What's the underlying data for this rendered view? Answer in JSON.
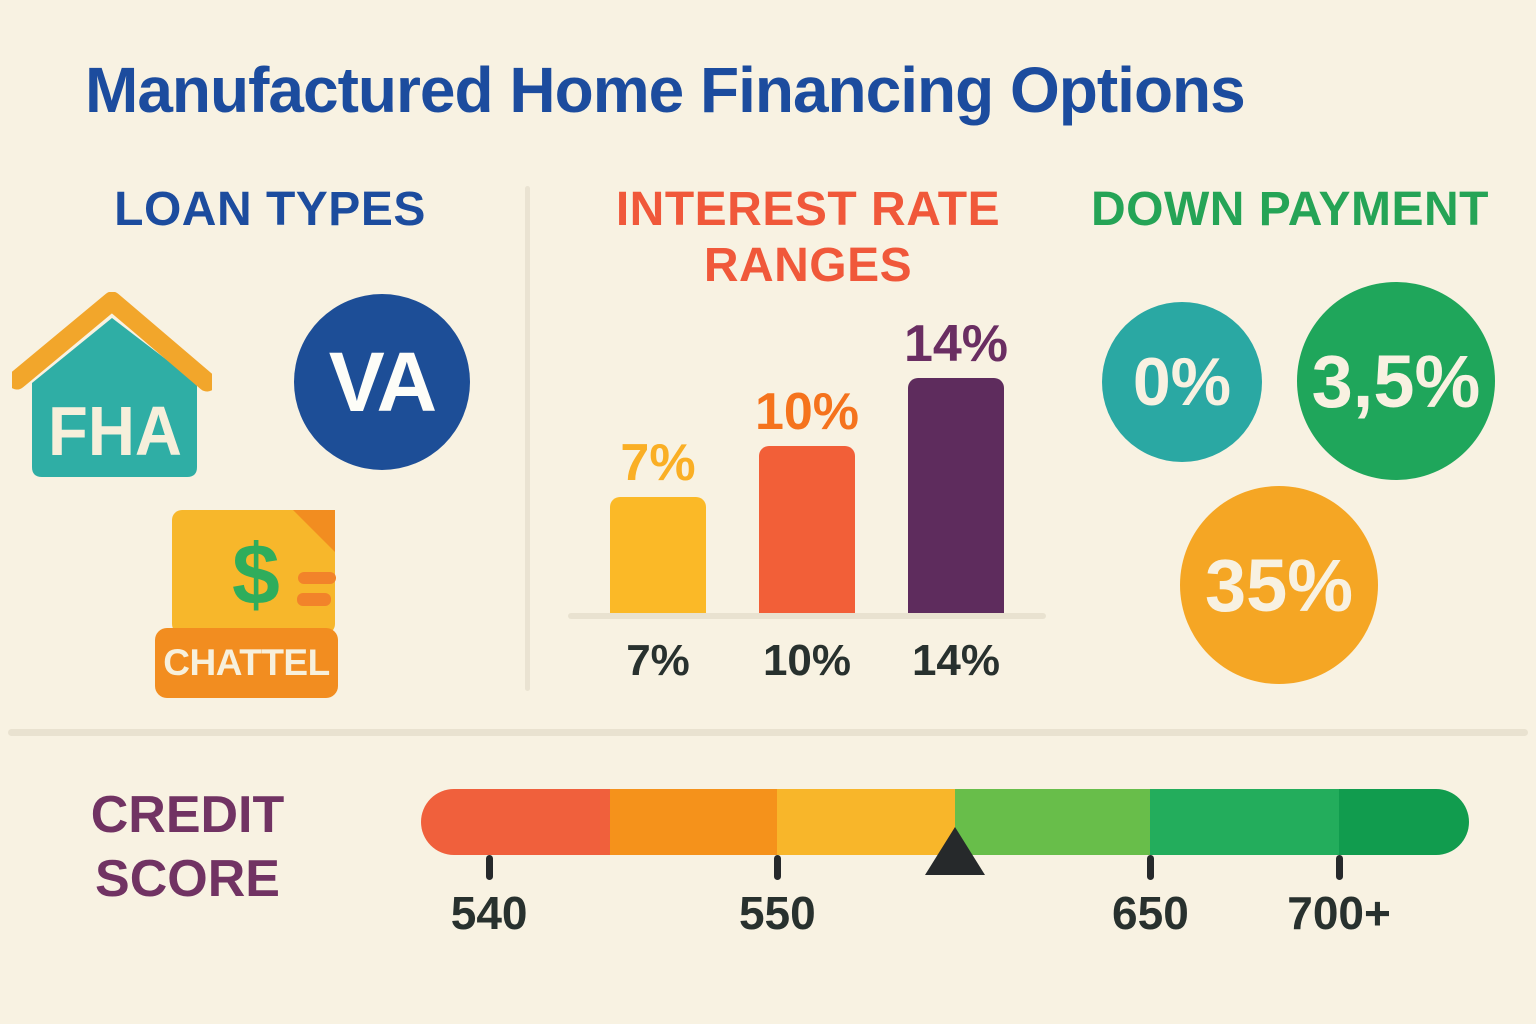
{
  "background_color": "#F8F2E2",
  "title": {
    "text": "Manufactured Home Financing Options",
    "color": "#1C4C9E"
  },
  "loan_types": {
    "heading": "LOAN TYPES",
    "heading_color": "#1C4C9E",
    "fha": {
      "label": "FHA",
      "house_color": "#2FAEA5",
      "roof_color": "#F2A62B",
      "label_color": "#F6EFDB"
    },
    "va": {
      "label": "VA",
      "circle_color": "#1D4E97",
      "label_color": "#FDFDF8"
    },
    "chattel": {
      "label": "CHATTEL",
      "dollar": "$",
      "doc_color": "#F7B72B",
      "accent_color": "#F28D20",
      "dollar_color": "#2FAD5C",
      "label_color": "#F7F0DC"
    }
  },
  "interest_rates": {
    "heading_line1": "INTEREST RATE",
    "heading_line2": "RANGES",
    "heading_color": "#F0583A",
    "bars": [
      {
        "value_label": "7%",
        "axis_label": "7%",
        "label_color": "#FAAF25"
      },
      {
        "value_label": "10%",
        "axis_label": "10%",
        "label_color": "#F5731D"
      },
      {
        "value_label": "14%",
        "axis_label": "14%",
        "label_color": "#6A2E62"
      }
    ],
    "axis_label_color": "#28312E"
  },
  "down_payment": {
    "heading": "DOWN PAYMENT",
    "heading_color": "#25A456",
    "text_color": "#F8F1E1",
    "circles": [
      {
        "value": "0%",
        "color": "#2AA8A3"
      },
      {
        "value": "3,5%",
        "color": "#1FA65B"
      },
      {
        "value": "35%",
        "color": "#F5A624"
      }
    ]
  },
  "credit_score": {
    "heading_line1": "CREDIT",
    "heading_line2": "SCORE",
    "heading_color": "#713363",
    "tick_labels": [
      "540",
      "550",
      "650",
      "700+"
    ],
    "label_color": "#28312E"
  },
  "chart_data": [
    {
      "type": "bar",
      "title": "INTEREST RATE RANGES",
      "categories": [
        "7%",
        "10%",
        "14%"
      ],
      "values": [
        7,
        10,
        14
      ],
      "data_labels": [
        "7%",
        "10%",
        "14%"
      ],
      "bar_colors": [
        "#FBB927",
        "#F25F38",
        "#5E2C5D"
      ],
      "xlabel": "",
      "ylabel": "",
      "ylim": [
        0,
        14
      ],
      "grid": false,
      "legend": false
    },
    {
      "type": "bar",
      "subtype": "horizontal-segmented-credit-scale",
      "title": "CREDIT SCORE",
      "tick_labels": [
        "540",
        "550",
        "650",
        "700+"
      ],
      "tick_positions_pct": [
        6.5,
        34.0,
        69.6,
        87.6
      ],
      "segments": [
        {
          "color": "#F0603C",
          "width_pct": 18.0
        },
        {
          "color": "#F5921B",
          "width_pct": 16.0
        },
        {
          "color": "#F8B62A",
          "width_pct": 17.0
        },
        {
          "color": "#68BE4A",
          "width_pct": 18.6
        },
        {
          "color": "#23AD5C",
          "width_pct": 18.0
        },
        {
          "color": "#119C4E",
          "width_pct": 12.4
        }
      ],
      "marker_position_pct": 51.0,
      "marker_shape": "black triangle pointer between 550 and 650"
    }
  ]
}
